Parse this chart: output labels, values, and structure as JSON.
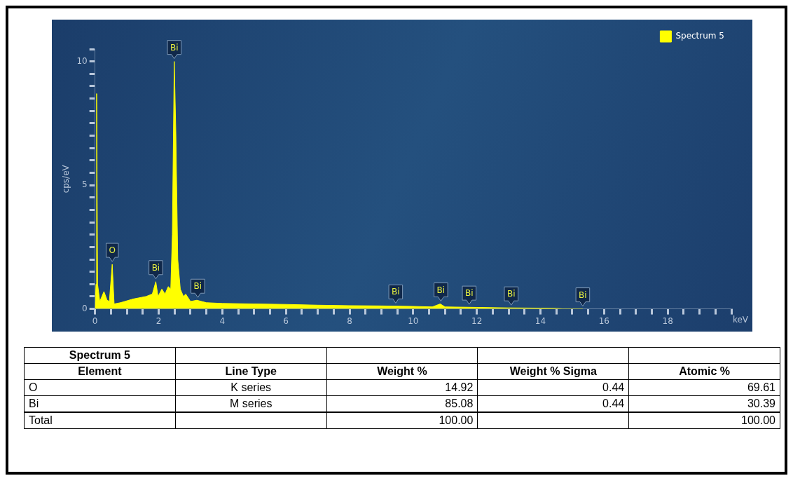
{
  "chart_data": [
    {
      "type": "area",
      "ylabel": "cps/eV",
      "xlabel": "keV",
      "legend": "top right",
      "grid": false,
      "xlim": [
        0,
        20
      ],
      "ylim": [
        0,
        10.5
      ],
      "xticks": [
        0,
        {
          "value": 0.5,
          "label": null
        },
        {
          "value": 1,
          "label": null
        },
        {
          "value": 1.5,
          "label": null
        },
        2,
        {
          "value": 2.5,
          "label": null
        },
        {
          "value": 3,
          "label": null
        },
        {
          "value": 3.5,
          "label": null
        },
        4,
        {
          "value": 4.5,
          "label": null
        },
        {
          "value": 5,
          "label": null
        },
        {
          "value": 5.5,
          "label": null
        },
        6,
        {
          "value": 6.5,
          "label": null
        },
        {
          "value": 7,
          "label": null
        },
        {
          "value": 7.5,
          "label": null
        },
        8,
        {
          "value": 8.5,
          "label": null
        },
        {
          "value": 9,
          "label": null
        },
        {
          "value": 9.5,
          "label": null
        },
        10,
        {
          "value": 10.5,
          "label": null
        },
        {
          "value": 11,
          "label": null
        },
        {
          "value": 11.5,
          "label": null
        },
        12,
        {
          "value": 12.5,
          "label": null
        },
        {
          "value": 13,
          "label": null
        },
        {
          "value": 13.5,
          "label": null
        },
        14,
        {
          "value": 14.5,
          "label": null
        },
        {
          "value": 15,
          "label": null
        },
        {
          "value": 15.5,
          "label": null
        },
        16,
        {
          "value": 16.5,
          "label": null
        },
        {
          "value": 17,
          "label": null
        },
        {
          "value": 17.5,
          "label": null
        },
        18,
        {
          "value": 18.5,
          "label": null
        },
        {
          "value": 19,
          "label": null
        },
        {
          "value": 19.5,
          "label": null
        },
        {
          "value": 20,
          "label": null
        }
      ],
      "yticks": [
        0,
        {
          "value": 0.5,
          "label": null
        },
        {
          "value": 1,
          "label": null
        },
        {
          "value": 1.5,
          "label": null
        },
        {
          "value": 2,
          "label": null
        },
        {
          "value": 2.5,
          "label": null
        },
        {
          "value": 3,
          "label": null
        },
        {
          "value": 3.5,
          "label": null
        },
        {
          "value": 4,
          "label": null
        },
        {
          "value": 4.5,
          "label": null
        },
        5,
        {
          "value": 5.5,
          "label": null
        },
        {
          "value": 6,
          "label": null
        },
        {
          "value": 6.5,
          "label": null
        },
        {
          "value": 7,
          "label": null
        },
        {
          "value": 7.5,
          "label": null
        },
        {
          "value": 8,
          "label": null
        },
        {
          "value": 8.5,
          "label": null
        },
        {
          "value": 9,
          "label": null
        },
        {
          "value": 9.5,
          "label": null
        },
        10,
        {
          "value": 10.5,
          "label": null
        }
      ],
      "series": [
        {
          "name": "Spectrum 5",
          "color": "#ffff00",
          "x": [
            0,
            0.03,
            0.05,
            0.08,
            0.15,
            0.28,
            0.38,
            0.45,
            0.54,
            0.6,
            0.8,
            1.2,
            1.6,
            1.8,
            1.91,
            1.98,
            2.1,
            2.2,
            2.3,
            2.38,
            2.43,
            2.49,
            2.54,
            2.6,
            2.68,
            2.78,
            2.85,
            3.0,
            3.2,
            3.5,
            4,
            5,
            6,
            7,
            8,
            9,
            10,
            10.6,
            10.85,
            11.0,
            12,
            13,
            14,
            14.5,
            14.7,
            15.33
          ],
          "values": [
            0,
            1,
            8.7,
            1,
            0.3,
            0.7,
            0.35,
            0.3,
            1.8,
            0.2,
            0.25,
            0.4,
            0.5,
            0.6,
            1.1,
            0.5,
            0.8,
            0.6,
            0.9,
            0.8,
            3,
            10,
            7.1,
            2,
            0.8,
            0.5,
            0.6,
            0.3,
            0.35,
            0.25,
            0.22,
            0.2,
            0.18,
            0.15,
            0.13,
            0.12,
            0.1,
            0.08,
            0.2,
            0.08,
            0.06,
            0.04,
            0.03,
            0.02,
            0,
            0
          ]
        }
      ],
      "annotations": [
        {
          "text": "O",
          "x": 0.54,
          "y": 1.8
        },
        {
          "text": "Bi",
          "x": 1.91,
          "y": 1.1
        },
        {
          "text": "Bi",
          "x": 2.49,
          "y": 10
        },
        {
          "text": "Bi",
          "x": 3.23,
          "y": 0.35
        },
        {
          "text": "Bi",
          "x": 9.45,
          "y": 0.12
        },
        {
          "text": "Bi",
          "x": 10.87,
          "y": 0.2
        },
        {
          "text": "Bi",
          "x": 11.76,
          "y": 0.07
        },
        {
          "text": "Bi",
          "x": 13.08,
          "y": 0.04
        },
        {
          "text": "Bi",
          "x": 15.33,
          "y": 0
        }
      ]
    },
    {
      "type": "other",
      "title": "Spectrum 5",
      "categories": [
        "Element",
        "Line Type",
        "Weight %",
        "Weight % Sigma",
        "Atomic %"
      ],
      "cell_labels": [
        [
          "O",
          "K series",
          "14.92",
          "0.44",
          "69.61"
        ],
        [
          "Bi",
          "M series",
          "85.08",
          "0.44",
          "30.39"
        ],
        [
          "Total",
          null,
          "100.00",
          null,
          "100.00"
        ]
      ]
    }
  ]
}
